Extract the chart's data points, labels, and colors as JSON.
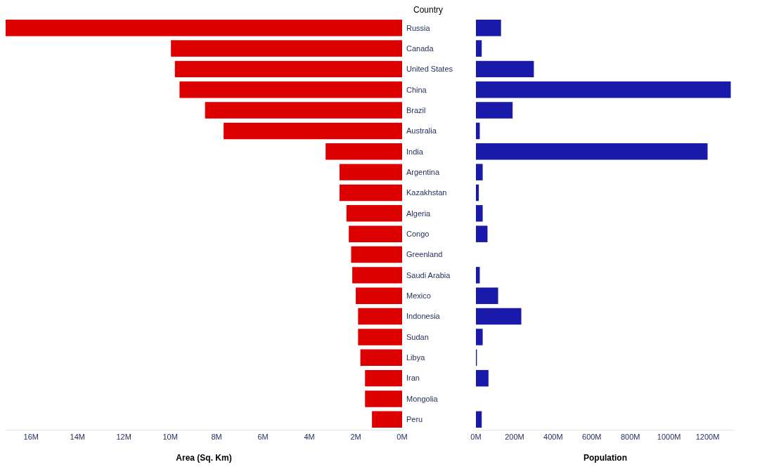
{
  "chart_data": [
    {
      "type": "bar",
      "orientation": "horizontal",
      "ylabel": "Country",
      "xlabel": "Area (Sq. Km)",
      "categories": [
        "Russia",
        "Canada",
        "United States",
        "China",
        "Brazil",
        "Australia",
        "India",
        "Argentina",
        "Kazakhstan",
        "Algeria",
        "Congo",
        "Greenland",
        "Saudi Arabia",
        "Mexico",
        "Indonesia",
        "Sudan",
        "Libya",
        "Iran",
        "Mongolia",
        "Peru"
      ],
      "series": [
        {
          "color": "#dd0000",
          "values": [
            17.1,
            9.97,
            9.8,
            9.6,
            8.5,
            7.7,
            3.3,
            2.7,
            2.7,
            2.4,
            2.3,
            2.2,
            2.15,
            2.0,
            1.9,
            1.9,
            1.8,
            1.6,
            1.6,
            1.3
          ]
        }
      ],
      "xlim": [
        17.1,
        0
      ],
      "xticks": [
        {
          "value": 16,
          "label": "16M"
        },
        {
          "value": 14,
          "label": "14M"
        },
        {
          "value": 12,
          "label": "12M"
        },
        {
          "value": 10,
          "label": "10M"
        },
        {
          "value": 8,
          "label": "8M"
        },
        {
          "value": 6,
          "label": "6M"
        },
        {
          "value": 4,
          "label": "4M"
        },
        {
          "value": 2,
          "label": "2M"
        },
        {
          "value": 0,
          "label": "0M"
        }
      ],
      "grid": false,
      "legend": false
    },
    {
      "type": "bar",
      "orientation": "horizontal",
      "xlabel": "Population",
      "series": [
        {
          "color": "#1a1aaa",
          "values": [
            130,
            30,
            300,
            1320,
            190,
            20,
            1200,
            35,
            15,
            35,
            60,
            null,
            20,
            115,
            235,
            35,
            5,
            65,
            null,
            30
          ]
        }
      ],
      "xlim": [
        0,
        1340
      ],
      "xticks": [
        {
          "value": 0,
          "label": "0M"
        },
        {
          "value": 200,
          "label": "200M"
        },
        {
          "value": 400,
          "label": "400M"
        },
        {
          "value": 600,
          "label": "600M"
        },
        {
          "value": 800,
          "label": "800M"
        },
        {
          "value": 1000,
          "label": "1000M"
        },
        {
          "value": 1200,
          "label": "1200M"
        }
      ],
      "tick_labels": "x",
      "grid": false,
      "legend": false
    }
  ]
}
